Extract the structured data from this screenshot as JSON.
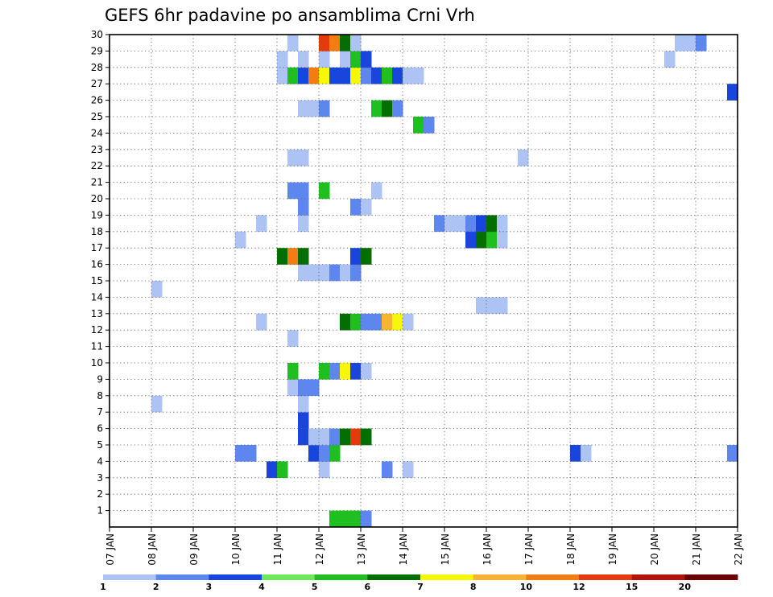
{
  "chart_data": {
    "type": "heatmap",
    "title": "GEFS 6hr padavine po ansamblima Crni Vrh",
    "x_tick_labels": [
      "07 JAN",
      "08 JAN",
      "09 JAN",
      "10 JAN",
      "11 JAN",
      "12 JAN",
      "13 JAN",
      "14 JAN",
      "15 JAN",
      "16 JAN",
      "17 JAN",
      "18 JAN",
      "19 JAN",
      "20 JAN",
      "21 JAN",
      "22 JAN"
    ],
    "y_tick_labels": [
      "1",
      "2",
      "3",
      "4",
      "5",
      "6",
      "7",
      "8",
      "9",
      "10",
      "11",
      "12",
      "13",
      "14",
      "15",
      "16",
      "17",
      "18",
      "19",
      "20",
      "21",
      "22",
      "23",
      "24",
      "25",
      "26",
      "27",
      "28",
      "29",
      "30"
    ],
    "x_range_days": [
      7,
      22
    ],
    "y_range": [
      0,
      30
    ],
    "time_step_days": 0.25,
    "grid": "dotted",
    "colorbar": {
      "levels": [
        1,
        2,
        3,
        4,
        5,
        6,
        7,
        8,
        10,
        12,
        15,
        20
      ],
      "labels": [
        "1",
        "2",
        "3",
        "4",
        "5",
        "6",
        "7",
        "8",
        "10",
        "12",
        "15",
        "20"
      ],
      "colors": [
        "#adc3f4",
        "#5d87ee",
        "#1846dc",
        "#6de85b",
        "#1fbf1f",
        "#046f00",
        "#f7f70a",
        "#f7b333",
        "#f47d11",
        "#e43a0e",
        "#b2140d",
        "#6d0202"
      ]
    },
    "cells": [
      {
        "member": 0,
        "day": 12.25,
        "cat": 5
      },
      {
        "member": 0,
        "day": 12.5,
        "cat": 5
      },
      {
        "member": 0,
        "day": 12.75,
        "cat": 5
      },
      {
        "member": 0,
        "day": 13.0,
        "cat": 2
      },
      {
        "member": 3,
        "day": 10.75,
        "cat": 3
      },
      {
        "member": 3,
        "day": 11.0,
        "cat": 5
      },
      {
        "member": 3,
        "day": 12.0,
        "cat": 1
      },
      {
        "member": 3,
        "day": 13.5,
        "cat": 2
      },
      {
        "member": 3,
        "day": 14.0,
        "cat": 1
      },
      {
        "member": 4,
        "day": 10.0,
        "cat": 2
      },
      {
        "member": 4,
        "day": 10.25,
        "cat": 2
      },
      {
        "member": 4,
        "day": 11.75,
        "cat": 3
      },
      {
        "member": 4,
        "day": 12.0,
        "cat": 2
      },
      {
        "member": 4,
        "day": 12.25,
        "cat": 5
      },
      {
        "member": 4,
        "day": 18.0,
        "cat": 3
      },
      {
        "member": 4,
        "day": 18.25,
        "cat": 1
      },
      {
        "member": 4,
        "day": 21.75,
        "cat": 2
      },
      {
        "member": 5,
        "day": 11.5,
        "cat": 3
      },
      {
        "member": 5,
        "day": 11.75,
        "cat": 1
      },
      {
        "member": 5,
        "day": 12.0,
        "cat": 1
      },
      {
        "member": 5,
        "day": 12.25,
        "cat": 2
      },
      {
        "member": 5,
        "day": 12.5,
        "cat": 6
      },
      {
        "member": 5,
        "day": 12.75,
        "cat": 10
      },
      {
        "member": 5,
        "day": 13.0,
        "cat": 6
      },
      {
        "member": 6,
        "day": 11.5,
        "cat": 3
      },
      {
        "member": 7,
        "day": 8.0,
        "cat": 1
      },
      {
        "member": 7,
        "day": 11.5,
        "cat": 1
      },
      {
        "member": 8,
        "day": 11.25,
        "cat": 1
      },
      {
        "member": 8,
        "day": 11.5,
        "cat": 2
      },
      {
        "member": 8,
        "day": 11.75,
        "cat": 2
      },
      {
        "member": 9,
        "day": 11.25,
        "cat": 5
      },
      {
        "member": 9,
        "day": 12.0,
        "cat": 5
      },
      {
        "member": 9,
        "day": 12.25,
        "cat": 2
      },
      {
        "member": 9,
        "day": 12.5,
        "cat": 7
      },
      {
        "member": 9,
        "day": 12.75,
        "cat": 3
      },
      {
        "member": 9,
        "day": 13.0,
        "cat": 1
      },
      {
        "member": 11,
        "day": 11.25,
        "cat": 1
      },
      {
        "member": 12,
        "day": 10.5,
        "cat": 1
      },
      {
        "member": 12,
        "day": 12.5,
        "cat": 6
      },
      {
        "member": 12,
        "day": 12.75,
        "cat": 5
      },
      {
        "member": 12,
        "day": 13.0,
        "cat": 2
      },
      {
        "member": 12,
        "day": 13.25,
        "cat": 2
      },
      {
        "member": 12,
        "day": 13.5,
        "cat": 8
      },
      {
        "member": 12,
        "day": 13.75,
        "cat": 7
      },
      {
        "member": 12,
        "day": 14.0,
        "cat": 1
      },
      {
        "member": 13,
        "day": 15.75,
        "cat": 1
      },
      {
        "member": 13,
        "day": 16.0,
        "cat": 1
      },
      {
        "member": 13,
        "day": 16.25,
        "cat": 1
      },
      {
        "member": 14,
        "day": 8.0,
        "cat": 1
      },
      {
        "member": 15,
        "day": 11.5,
        "cat": 1
      },
      {
        "member": 15,
        "day": 11.75,
        "cat": 1
      },
      {
        "member": 15,
        "day": 12.0,
        "cat": 1
      },
      {
        "member": 15,
        "day": 12.25,
        "cat": 2
      },
      {
        "member": 15,
        "day": 12.5,
        "cat": 1
      },
      {
        "member": 15,
        "day": 12.75,
        "cat": 2
      },
      {
        "member": 16,
        "day": 11.0,
        "cat": 6
      },
      {
        "member": 16,
        "day": 11.25,
        "cat": 9
      },
      {
        "member": 16,
        "day": 11.5,
        "cat": 6
      },
      {
        "member": 16,
        "day": 12.75,
        "cat": 3
      },
      {
        "member": 16,
        "day": 13.0,
        "cat": 6
      },
      {
        "member": 17,
        "day": 10.0,
        "cat": 1
      },
      {
        "member": 17,
        "day": 15.5,
        "cat": 3
      },
      {
        "member": 17,
        "day": 15.75,
        "cat": 6
      },
      {
        "member": 17,
        "day": 16.0,
        "cat": 5
      },
      {
        "member": 17,
        "day": 16.25,
        "cat": 1
      },
      {
        "member": 18,
        "day": 10.5,
        "cat": 1
      },
      {
        "member": 18,
        "day": 11.5,
        "cat": 1
      },
      {
        "member": 18,
        "day": 14.75,
        "cat": 2
      },
      {
        "member": 18,
        "day": 15.0,
        "cat": 1
      },
      {
        "member": 18,
        "day": 15.25,
        "cat": 1
      },
      {
        "member": 18,
        "day": 15.5,
        "cat": 2
      },
      {
        "member": 18,
        "day": 15.75,
        "cat": 3
      },
      {
        "member": 18,
        "day": 16.0,
        "cat": 6
      },
      {
        "member": 18,
        "day": 16.25,
        "cat": 1
      },
      {
        "member": 19,
        "day": 11.5,
        "cat": 2
      },
      {
        "member": 19,
        "day": 12.75,
        "cat": 2
      },
      {
        "member": 19,
        "day": 13.0,
        "cat": 1
      },
      {
        "member": 20,
        "day": 11.25,
        "cat": 2
      },
      {
        "member": 20,
        "day": 11.5,
        "cat": 2
      },
      {
        "member": 20,
        "day": 12.0,
        "cat": 5
      },
      {
        "member": 20,
        "day": 13.25,
        "cat": 1
      },
      {
        "member": 22,
        "day": 11.25,
        "cat": 1
      },
      {
        "member": 22,
        "day": 11.5,
        "cat": 1
      },
      {
        "member": 22,
        "day": 16.75,
        "cat": 1
      },
      {
        "member": 24,
        "day": 14.25,
        "cat": 5
      },
      {
        "member": 24,
        "day": 14.5,
        "cat": 2
      },
      {
        "member": 25,
        "day": 11.5,
        "cat": 1
      },
      {
        "member": 25,
        "day": 11.75,
        "cat": 1
      },
      {
        "member": 25,
        "day": 12.0,
        "cat": 2
      },
      {
        "member": 25,
        "day": 13.25,
        "cat": 5
      },
      {
        "member": 25,
        "day": 13.5,
        "cat": 6
      },
      {
        "member": 25,
        "day": 13.75,
        "cat": 2
      },
      {
        "member": 26,
        "day": 21.75,
        "cat": 3
      },
      {
        "member": 27,
        "day": 11.0,
        "cat": 1
      },
      {
        "member": 27,
        "day": 11.25,
        "cat": 5
      },
      {
        "member": 27,
        "day": 11.5,
        "cat": 3
      },
      {
        "member": 27,
        "day": 11.75,
        "cat": 9
      },
      {
        "member": 27,
        "day": 12.0,
        "cat": 7
      },
      {
        "member": 27,
        "day": 12.25,
        "cat": 3
      },
      {
        "member": 27,
        "day": 12.5,
        "cat": 3
      },
      {
        "member": 27,
        "day": 12.75,
        "cat": 7
      },
      {
        "member": 27,
        "day": 13.0,
        "cat": 2
      },
      {
        "member": 27,
        "day": 13.25,
        "cat": 3
      },
      {
        "member": 27,
        "day": 13.5,
        "cat": 5
      },
      {
        "member": 27,
        "day": 13.75,
        "cat": 3
      },
      {
        "member": 27,
        "day": 14.0,
        "cat": 1
      },
      {
        "member": 27,
        "day": 14.25,
        "cat": 1
      },
      {
        "member": 28,
        "day": 11.0,
        "cat": 1
      },
      {
        "member": 28,
        "day": 11.5,
        "cat": 1
      },
      {
        "member": 28,
        "day": 12.0,
        "cat": 1
      },
      {
        "member": 28,
        "day": 12.5,
        "cat": 1
      },
      {
        "member": 28,
        "day": 12.75,
        "cat": 5
      },
      {
        "member": 28,
        "day": 13.0,
        "cat": 3
      },
      {
        "member": 28,
        "day": 20.25,
        "cat": 1
      },
      {
        "member": 29,
        "day": 11.25,
        "cat": 1
      },
      {
        "member": 29,
        "day": 12.0,
        "cat": 10
      },
      {
        "member": 29,
        "day": 12.25,
        "cat": 9
      },
      {
        "member": 29,
        "day": 12.5,
        "cat": 6
      },
      {
        "member": 29,
        "day": 12.75,
        "cat": 1
      },
      {
        "member": 29,
        "day": 20.5,
        "cat": 1
      },
      {
        "member": 29,
        "day": 20.75,
        "cat": 1
      },
      {
        "member": 29,
        "day": 21.0,
        "cat": 2
      }
    ]
  }
}
